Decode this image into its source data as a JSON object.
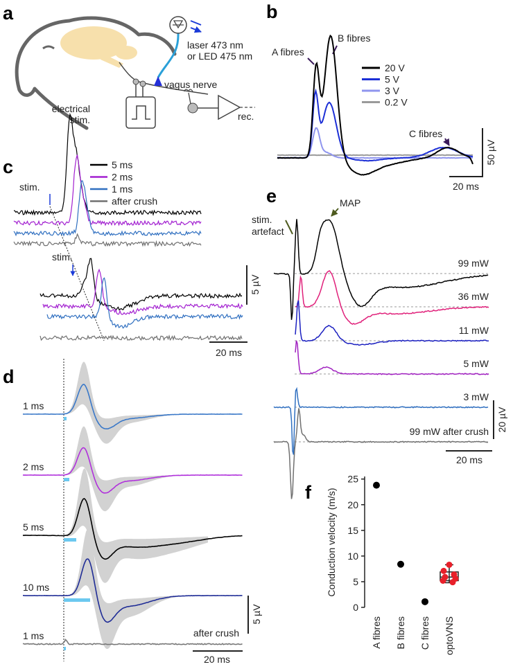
{
  "panel_a": {
    "label": "a",
    "light_source": [
      "laser 473 nm",
      "or LED 475 nm"
    ],
    "nerve": "vagus nerve",
    "stimulus": [
      "electrical",
      "stim."
    ],
    "recording": "rec."
  },
  "panel_b": {
    "label": "b",
    "annotations": [
      "A fibres",
      "B fibres",
      "C fibres"
    ],
    "series": [
      {
        "name": "20 V",
        "color": "#000000"
      },
      {
        "name": "5 V",
        "color": "#1c2fd6"
      },
      {
        "name": "3 V",
        "color": "#8f95ee"
      },
      {
        "name": "0.2 V",
        "color": "#9a9a9a"
      }
    ],
    "scale_y": "50 µV",
    "scale_x": "20 ms"
  },
  "panel_c": {
    "label": "c",
    "stim_labels": [
      "stim.",
      "stim."
    ],
    "series": [
      {
        "name": "5 ms",
        "color": "#000000"
      },
      {
        "name": "2 ms",
        "color": "#a21fd0"
      },
      {
        "name": "1 ms",
        "color": "#2f6fc0"
      },
      {
        "name": "after crush",
        "color": "#707070"
      }
    ],
    "scale_y": "5 µV",
    "scale_x": "20 ms"
  },
  "panel_d": {
    "label": "d",
    "traces": [
      {
        "name": "1 ms",
        "color": "#3a78c8"
      },
      {
        "name": "2 ms",
        "color": "#b030dc"
      },
      {
        "name": "5 ms",
        "color": "#000000"
      },
      {
        "name": "10 ms",
        "color": "#1f2c96"
      },
      {
        "name": "1 ms",
        "color": "#777777"
      }
    ],
    "crush_label": "after crush",
    "scale_y": "5 µV",
    "scale_x": "20 ms"
  },
  "panel_e": {
    "label": "e",
    "artefact": [
      "stim.",
      "artefact"
    ],
    "map": "MAP",
    "traces": [
      {
        "name": "99 mW",
        "color": "#000000"
      },
      {
        "name": "36 mW",
        "color": "#e0207a"
      },
      {
        "name": "11 mW",
        "color": "#1a1fc0"
      },
      {
        "name": "5 mW",
        "color": "#a020c0"
      },
      {
        "name": "3 mW",
        "color": "#2f6fc0"
      },
      {
        "name": "99 mW after crush",
        "color": "#707070"
      }
    ],
    "scale_y": "20 µV",
    "scale_x": "20 ms"
  },
  "chart_data": {
    "type": "scatter",
    "label": "f",
    "y_label": "Conduction velocity (m/s)",
    "categories": [
      "A fibres",
      "B fibres",
      "C fibres",
      "optoVNS"
    ],
    "ylim": [
      0,
      25.5
    ],
    "yticks": [
      0,
      5,
      10,
      15,
      20,
      25
    ],
    "series": [
      {
        "color": "#000000",
        "values": [
          23.8,
          8.4,
          1.1,
          null
        ]
      }
    ],
    "optovns": {
      "color": "#e8202a",
      "values": [
        8.3,
        7.1,
        6.4,
        5.9,
        5.6,
        5.2,
        4.9
      ]
    },
    "box": {
      "whisker_low": 4.8,
      "q1": 5.2,
      "median": 5.9,
      "q3": 6.9,
      "whisker_high": 8.3
    }
  }
}
